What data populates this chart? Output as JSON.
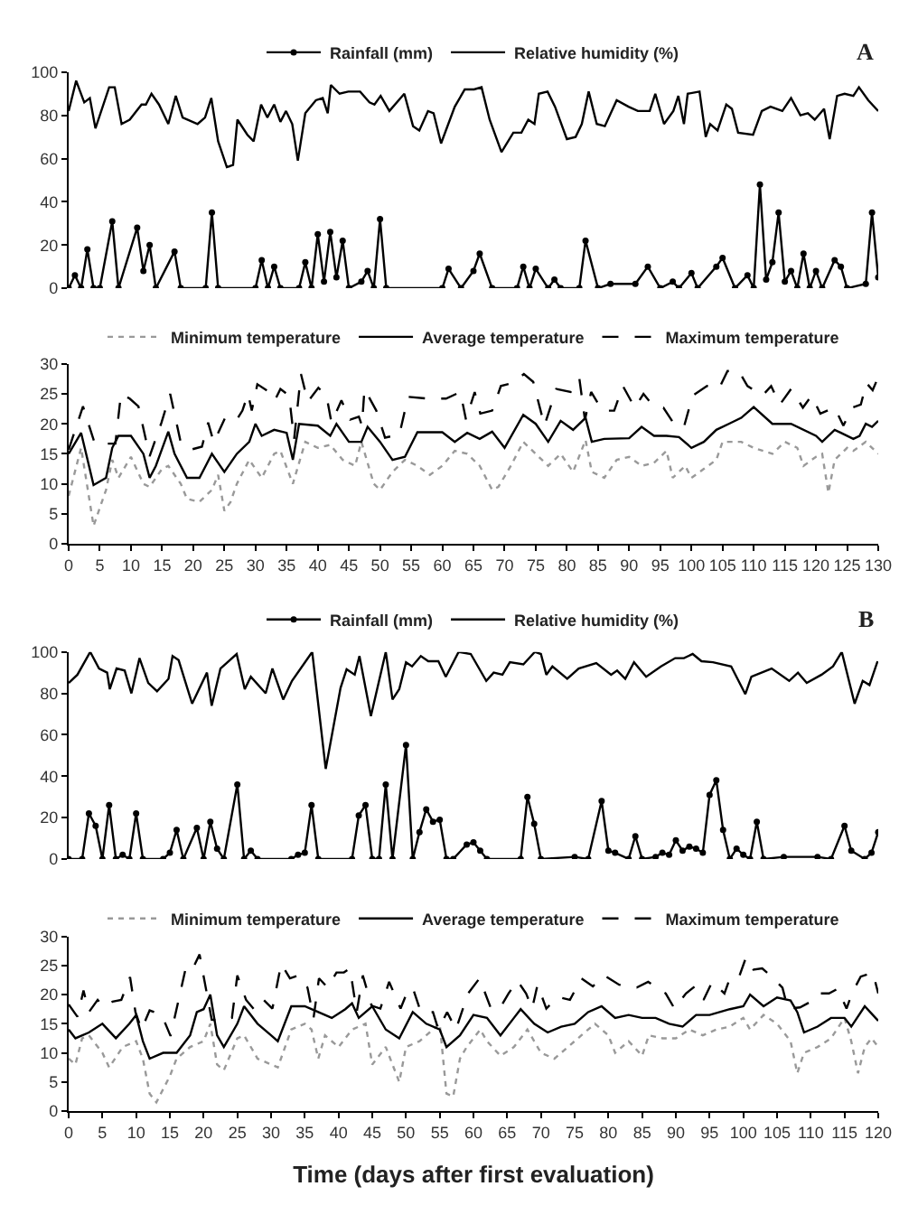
{
  "chart_data": [
    {
      "type": "line",
      "xlim": [
        0,
        130
      ],
      "ylim": [
        0,
        100
      ],
      "yticks": [
        0,
        20,
        40,
        60,
        80,
        100
      ],
      "tick_labels": "y",
      "legend": "top",
      "annotations": [
        "A"
      ],
      "series": [
        {
          "name": "Rainfall (mm)",
          "color": "#000000",
          "marker": "circle",
          "line_style": "solid",
          "x": [
            0,
            1,
            2,
            3,
            4,
            5,
            7,
            8,
            11,
            12,
            13,
            14,
            17,
            18,
            22,
            23,
            24,
            30,
            31,
            32,
            33,
            34,
            37,
            38,
            39,
            40,
            41,
            42,
            43,
            44,
            45,
            47,
            48,
            49,
            50,
            51,
            60,
            61,
            63,
            65,
            66,
            68,
            72,
            73,
            74,
            75,
            77,
            78,
            79,
            82,
            83,
            85,
            87,
            91,
            93,
            95,
            97,
            98,
            100,
            101,
            104,
            105,
            107,
            109,
            110,
            111,
            112,
            113,
            114,
            115,
            116,
            117,
            118,
            119,
            120,
            121,
            123,
            124,
            125,
            128,
            129,
            130
          ],
          "values": [
            0,
            6,
            0,
            18,
            0,
            0,
            31,
            0,
            28,
            8,
            20,
            0,
            17,
            0,
            0,
            35,
            0,
            0,
            13,
            0,
            10,
            0,
            0,
            12,
            0,
            25,
            3,
            26,
            5,
            22,
            0,
            3,
            8,
            0,
            32,
            0,
            0,
            9,
            0,
            8,
            16,
            0,
            0,
            10,
            0,
            9,
            0,
            4,
            0,
            0,
            22,
            0,
            2,
            2,
            10,
            0,
            3,
            0,
            7,
            0,
            10,
            14,
            0,
            6,
            0,
            48,
            4,
            12,
            35,
            3,
            8,
            0,
            16,
            0,
            8,
            0,
            13,
            10,
            0,
            2,
            35,
            5
          ]
        },
        {
          "name": "Relative humidity (%)",
          "color": "#000000",
          "marker": "none",
          "line_style": "solid",
          "x": [
            0,
            1.2,
            2.5,
            3.4,
            4.3,
            6.5,
            7.4,
            8.5,
            9.8,
            11.7,
            12.4,
            13.3,
            14.5,
            16,
            17.2,
            18.3,
            20.7,
            21.9,
            22.9,
            24,
            25.4,
            26.4,
            27.1,
            28.7,
            29.7,
            30.9,
            31.9,
            33,
            34,
            34.9,
            35.9,
            36.8,
            38,
            39.7,
            40.8,
            41.6,
            42.1,
            43.5,
            44.9,
            46.8,
            48.3,
            49.1,
            50.1,
            51.5,
            53.9,
            55.3,
            56.3,
            57.7,
            58.6,
            59.8,
            62,
            63.6,
            65.1,
            66.3,
            67.6,
            69.5,
            71.4,
            72.7,
            73.8,
            74.8,
            75.5,
            76.9,
            78.1,
            80,
            81.4,
            82.4,
            83.5,
            84.8,
            86.1,
            88,
            89.9,
            91.4,
            93.3,
            94.2,
            95.6,
            97.1,
            97.9,
            98.8,
            99.4,
            101.3,
            102.3,
            103,
            104.2,
            105.6,
            106.5,
            107.5,
            109.9,
            111.3,
            112.7,
            114.6,
            116,
            117.5,
            118.7,
            119.8,
            121.3,
            122.2,
            123.4,
            124.6,
            126,
            126.9,
            128.4,
            130
          ],
          "values": [
            82,
            96,
            86,
            88,
            74,
            93,
            93,
            76,
            78,
            85,
            85,
            90,
            85,
            76,
            89,
            79,
            76,
            79,
            88,
            68,
            56,
            57,
            78,
            71,
            68,
            85,
            79,
            85,
            77,
            82,
            76,
            59,
            81,
            87,
            88,
            81,
            94,
            90,
            91,
            91,
            86,
            85,
            89,
            82,
            90,
            75,
            73,
            82,
            81,
            67,
            84,
            92,
            92,
            93,
            78,
            63,
            72,
            72,
            78,
            76,
            90,
            91,
            84,
            69,
            70,
            76,
            91,
            76,
            75,
            87,
            84,
            82,
            82,
            90,
            76,
            82,
            89,
            76,
            90,
            91,
            70,
            76,
            73,
            85,
            83,
            72,
            71,
            82,
            84,
            82,
            88,
            80,
            81,
            78,
            83,
            69,
            89,
            90,
            89,
            93,
            87,
            82
          ]
        }
      ]
    },
    {
      "type": "line",
      "xlim": [
        0,
        130
      ],
      "xticks": [
        0,
        5,
        10,
        15,
        20,
        25,
        30,
        35,
        40,
        45,
        50,
        55,
        60,
        65,
        70,
        75,
        80,
        85,
        90,
        95,
        100,
        105,
        110,
        115,
        120,
        125,
        130
      ],
      "ylim": [
        0,
        30
      ],
      "yticks": [
        0,
        5,
        10,
        15,
        20,
        25,
        30
      ],
      "legend": "top",
      "series": [
        {
          "name": "Minimum temperature",
          "color": "#999999",
          "line_style": "dotted",
          "x": [
            0,
            2,
            4,
            6,
            7,
            8,
            10,
            12,
            13,
            15,
            16,
            18,
            19,
            21,
            23,
            24,
            25,
            26,
            27,
            29,
            31,
            33,
            34,
            36,
            38,
            40,
            42,
            44,
            46,
            47,
            49,
            50,
            52,
            54,
            56,
            58,
            60,
            62,
            64,
            66,
            68,
            69,
            71,
            73,
            75,
            77,
            79,
            81,
            83,
            84,
            86,
            88,
            90,
            92,
            94,
            96,
            97,
            99,
            100,
            102,
            104,
            105,
            108,
            110,
            113,
            115,
            117,
            118,
            120,
            121,
            122,
            123,
            125,
            126,
            128,
            130
          ],
          "values": [
            8,
            16,
            3,
            9,
            14,
            11,
            14.5,
            10,
            9.5,
            12.5,
            13,
            10,
            7.5,
            7,
            9,
            11.5,
            5.5,
            7,
            10,
            14,
            11,
            15,
            15.5,
            10,
            17,
            16,
            16.5,
            14,
            13,
            17,
            10,
            9,
            12,
            14,
            13,
            11.5,
            13,
            15.5,
            15,
            13,
            9,
            9.5,
            13,
            17,
            15,
            13,
            15,
            12,
            17.3,
            12,
            11,
            14,
            14.5,
            13,
            13.5,
            15.5,
            11,
            13,
            11,
            12.5,
            14,
            17,
            17,
            16,
            15,
            17,
            16,
            13,
            14.5,
            15,
            8.5,
            14,
            16,
            15.5,
            17,
            15
          ]
        },
        {
          "name": "Average temperature",
          "color": "#000000",
          "line_style": "solid",
          "x": [
            0,
            2,
            4,
            6,
            7,
            8,
            10,
            12,
            13,
            14,
            16,
            17,
            19,
            21,
            22,
            23,
            25,
            27,
            29,
            30,
            31,
            33,
            35,
            36,
            37,
            40,
            42,
            43,
            45,
            47,
            48,
            50,
            52,
            54,
            56,
            60,
            62,
            64,
            66,
            68,
            70,
            73,
            75,
            77,
            79,
            81,
            83,
            84,
            86,
            90,
            92,
            94,
            96,
            98,
            100,
            102,
            104,
            106,
            108,
            110,
            113,
            116,
            120,
            121,
            123,
            124,
            126,
            127,
            128,
            129,
            130
          ],
          "values": [
            15,
            18.5,
            9.8,
            11,
            16,
            18,
            18,
            15,
            11,
            13,
            18.7,
            15,
            11,
            11,
            13,
            15,
            12,
            15,
            17,
            20,
            18,
            19,
            18.5,
            14,
            20,
            19.7,
            18,
            20,
            17,
            17,
            19.5,
            17,
            14,
            14.5,
            18.6,
            18.6,
            17,
            18.5,
            17.5,
            18.7,
            16,
            21.5,
            20,
            17,
            20.5,
            19,
            21,
            17,
            17.5,
            17.6,
            19.5,
            18,
            18,
            17.8,
            16,
            17,
            19,
            20,
            21,
            22.8,
            20,
            20,
            18,
            17,
            19,
            18.5,
            17.5,
            18,
            20,
            19.5,
            20.5
          ]
        },
        {
          "name": "Maximum temperature",
          "color": "#000000",
          "line_style": "dashed",
          "x": [
            0,
            2.3,
            4.2,
            7.5,
            8.4,
            9.8,
            11.2,
            13,
            14.9,
            16.3,
            18,
            19.6,
            21.4,
            22.4,
            23.3,
            25.2,
            27,
            27.9,
            28.8,
            29.4,
            30.3,
            32.2,
            33.1,
            34,
            35.4,
            36.2,
            37.3,
            38.4,
            40.1,
            41.4,
            42.2,
            43.8,
            45.2,
            46.6,
            47.1,
            47.5,
            49.4,
            50.8,
            53.1,
            54.5,
            57.8,
            60.6,
            62.9,
            63.8,
            65.2,
            66.1,
            68,
            69.4,
            71.3,
            73.1,
            74.6,
            76.4,
            78.3,
            80.6,
            82,
            82.9,
            83.9,
            85.7,
            87.6,
            89,
            90.9,
            92.3,
            93.7,
            95.5,
            97.4,
            98.8,
            100.2,
            102.5,
            104.4,
            105.8,
            107.6,
            109,
            111.4,
            112.8,
            114.2,
            116,
            117.9,
            119.3,
            120.7,
            123,
            124.4,
            125.8,
            127.2,
            128.1,
            129.1,
            130
          ],
          "values": [
            15.7,
            22.9,
            16.7,
            16.7,
            25,
            24.2,
            22.9,
            14.6,
            20.2,
            25,
            16.9,
            15.7,
            16.2,
            20.2,
            16.9,
            21.2,
            20.7,
            22.2,
            25,
            22.2,
            26.6,
            25.3,
            23.9,
            25.8,
            24.7,
            17.4,
            28.3,
            23.7,
            26,
            24.7,
            20.2,
            23.9,
            20.7,
            21.2,
            19.7,
            25.8,
            22.2,
            17.7,
            18.2,
            24.5,
            24.2,
            24.2,
            25.3,
            20.7,
            25.3,
            21.7,
            22.2,
            26.3,
            26.8,
            28.3,
            27,
            19.7,
            25.8,
            25.3,
            27.6,
            20.7,
            25.3,
            22.2,
            22.2,
            26.3,
            22.7,
            25,
            23.2,
            22.7,
            19.7,
            19.5,
            24.7,
            26.3,
            25.8,
            28.8,
            28.8,
            26.3,
            24.7,
            26.3,
            23.2,
            25.8,
            22.7,
            24.7,
            21.7,
            22.7,
            19.7,
            22.7,
            23.2,
            26.8,
            25.6,
            27.8
          ]
        }
      ]
    },
    {
      "type": "line",
      "xlim": [
        0,
        120
      ],
      "ylim": [
        0,
        100
      ],
      "yticks": [
        0,
        20,
        40,
        60,
        80,
        100
      ],
      "tick_labels": "y",
      "legend": "top",
      "annotations": [
        "B"
      ],
      "series": [
        {
          "name": "Rainfall (mm)",
          "color": "#000000",
          "marker": "circle",
          "line_style": "solid",
          "x": [
            0,
            2,
            3,
            4,
            5,
            6,
            7,
            8,
            9,
            10,
            11,
            14,
            15,
            16,
            17,
            19,
            20,
            21,
            22,
            23,
            25,
            26,
            27,
            28,
            33,
            34,
            35,
            36,
            37,
            42,
            43,
            44,
            45,
            46,
            47,
            48,
            50,
            51,
            52,
            53,
            54,
            55,
            56,
            57,
            59,
            60,
            61,
            62,
            67,
            68,
            69,
            70,
            75,
            77,
            79,
            80,
            81,
            83,
            84,
            85,
            87,
            88,
            89,
            90,
            91,
            92,
            93,
            94,
            95,
            96,
            97,
            98,
            99,
            100,
            101,
            102,
            103,
            106,
            111,
            113,
            115,
            116,
            118,
            119,
            120
          ],
          "values": [
            0,
            0,
            22,
            16,
            0,
            26,
            0,
            2,
            0,
            22,
            0,
            0,
            3,
            14,
            0,
            15,
            0,
            18,
            5,
            0,
            36,
            0,
            4,
            0,
            0,
            2,
            3,
            26,
            0,
            0,
            21,
            26,
            0,
            0,
            36,
            0,
            55,
            0,
            13,
            24,
            18,
            19,
            0,
            0,
            7,
            8,
            4,
            0,
            0,
            30,
            17,
            0,
            1,
            0,
            28,
            4,
            3,
            0,
            11,
            0,
            1,
            3,
            2,
            9,
            4,
            6,
            5,
            3,
            31,
            38,
            14,
            0,
            5,
            2,
            0,
            18,
            0,
            1,
            1,
            0,
            16,
            4,
            0,
            3,
            13
          ]
        },
        {
          "name": "Relative humidity (%)",
          "color": "#000000",
          "marker": "none",
          "line_style": "solid",
          "x": [
            0,
            1.3,
            3.2,
            4.5,
            5.7,
            6.1,
            7.1,
            8.3,
            9.3,
            10.5,
            11.8,
            13.1,
            14.8,
            15.4,
            16.3,
            18.3,
            20.5,
            21.2,
            22.5,
            24.9,
            26.1,
            27,
            29.2,
            30.2,
            31.8,
            33.1,
            36.1,
            38.1,
            40.3,
            41.2,
            42.4,
            43.1,
            44.8,
            47,
            48,
            49,
            50,
            50.9,
            52.2,
            53.3,
            54.8,
            55.9,
            57.8,
            59.6,
            61.9,
            63,
            64.3,
            65.4,
            67.4,
            69.1,
            70,
            70.8,
            71.7,
            73.9,
            75.6,
            78.2,
            80.4,
            81.3,
            82.5,
            83.8,
            85.6,
            87.8,
            89.9,
            91.2,
            92.5,
            93.8,
            95.5,
            98.2,
            100.3,
            101.2,
            104.2,
            106.8,
            108.1,
            109.4,
            111.6,
            113.3,
            114.6,
            116.5,
            117.7,
            118.7,
            119.9
          ],
          "values": [
            85,
            89,
            100,
            92,
            90,
            82,
            92,
            91,
            80,
            97,
            85,
            81,
            87,
            98,
            96,
            75,
            90,
            74,
            92,
            99,
            82,
            88,
            80,
            92,
            77,
            86,
            100,
            43.5,
            82.6,
            91.6,
            89,
            98,
            69,
            100,
            77,
            82,
            95,
            93,
            98,
            95.5,
            95.5,
            88,
            100,
            99,
            86,
            90,
            89,
            95,
            94,
            100,
            99,
            89,
            93,
            87,
            92,
            94.6,
            89,
            91,
            87,
            95,
            88,
            93,
            97,
            97,
            99,
            95.5,
            95,
            93,
            79.6,
            88,
            92,
            86,
            90,
            85,
            89,
            93,
            100,
            75,
            86,
            84,
            95.5
          ]
        }
      ]
    },
    {
      "type": "line",
      "xlim": [
        0,
        120
      ],
      "xticks": [
        0,
        5,
        10,
        15,
        20,
        25,
        30,
        35,
        40,
        45,
        50,
        55,
        60,
        65,
        70,
        75,
        80,
        85,
        90,
        95,
        100,
        105,
        110,
        115,
        120
      ],
      "ylim": [
        0,
        30
      ],
      "yticks": [
        0,
        5,
        10,
        15,
        20,
        25,
        30
      ],
      "legend": "top",
      "xlabel": "Time (days after first evaluation)",
      "series": [
        {
          "name": "Minimum temperature",
          "color": "#999999",
          "line_style": "dotted",
          "x": [
            0,
            1,
            2,
            3,
            5,
            6,
            8,
            10,
            11,
            12,
            13,
            15,
            16,
            18,
            20,
            21,
            22,
            23,
            25,
            26,
            28,
            30,
            31,
            33,
            35,
            36,
            37,
            38,
            40,
            42,
            44,
            45,
            47,
            49,
            50,
            52,
            55,
            56,
            57,
            58,
            59,
            61,
            62,
            64,
            66,
            68,
            70,
            72,
            74,
            76,
            78,
            80,
            81,
            83,
            85,
            86,
            88,
            90,
            92,
            94,
            96,
            98,
            100,
            101,
            103,
            105,
            107,
            108,
            109,
            111,
            113,
            115,
            116,
            117,
            118,
            119,
            120
          ],
          "values": [
            9,
            8,
            12.5,
            13,
            10,
            7.5,
            11,
            12,
            9,
            3,
            1.5,
            6,
            9,
            11,
            12,
            15,
            8,
            7,
            12.5,
            13,
            9,
            8,
            7.5,
            14,
            15,
            14,
            9,
            13,
            11,
            14,
            15,
            8,
            11,
            5,
            11,
            12,
            15,
            3,
            2.5,
            9,
            11,
            14,
            12,
            9.5,
            11,
            14,
            10,
            9,
            11,
            13,
            15,
            13,
            10,
            12,
            9.5,
            13,
            12.5,
            12.5,
            14,
            13,
            14,
            14.5,
            16,
            14,
            16.5,
            15,
            12,
            6.5,
            10,
            11,
            12.5,
            16,
            12,
            6.5,
            11,
            12.5,
            11
          ]
        },
        {
          "name": "Average temperature",
          "color": "#000000",
          "line_style": "solid",
          "x": [
            0,
            1,
            3,
            5,
            7,
            9,
            10,
            11,
            12,
            14,
            16,
            18,
            19,
            20,
            21,
            22,
            23,
            25,
            26,
            28,
            30,
            31,
            33,
            35,
            37,
            39,
            41,
            42,
            43,
            45,
            47,
            49,
            51,
            53,
            55,
            56,
            58,
            60,
            62,
            64,
            66,
            67,
            69,
            71,
            73,
            75,
            77,
            79,
            81,
            83,
            85,
            87,
            89,
            91,
            93,
            95,
            98,
            100,
            101,
            103,
            105,
            107,
            108,
            109,
            111,
            113,
            115,
            116,
            118,
            120
          ],
          "values": [
            14,
            12.5,
            13.5,
            15,
            12.5,
            15,
            16.5,
            12,
            9,
            10,
            10,
            13,
            17,
            17.5,
            20,
            13,
            11,
            15,
            18,
            15,
            13,
            12,
            18,
            18,
            17,
            16,
            17.5,
            18.5,
            16,
            18,
            14,
            12.5,
            17,
            15,
            14,
            11,
            13,
            16.5,
            16,
            13,
            16,
            17.5,
            15,
            13.5,
            14.5,
            15,
            17,
            18,
            16,
            16.5,
            16,
            16,
            15,
            14.5,
            16.5,
            16.5,
            17.5,
            18,
            20,
            18,
            19.5,
            19,
            17,
            13.5,
            14.5,
            16,
            16,
            14.5,
            18,
            15.5
          ]
        },
        {
          "name": "Maximum temperature",
          "color": "#000000",
          "line_style": "dashed",
          "x": [
            0,
            1.3,
            2.2,
            3,
            4.3,
            5.2,
            6.5,
            7.8,
            9.1,
            9.9,
            10.8,
            12,
            13.8,
            15.1,
            17.3,
            18.1,
            19.4,
            21.2,
            22.9,
            24.2,
            25,
            26.3,
            27.6,
            28.9,
            30.2,
            31.5,
            32.8,
            34.1,
            35.4,
            36.3,
            37.1,
            38.4,
            39.7,
            40.8,
            41.7,
            42.7,
            43.6,
            44.9,
            46.2,
            47.5,
            49.2,
            50.1,
            51,
            52.2,
            54,
            54.8,
            56.1,
            57.4,
            59.2,
            60.9,
            62.6,
            63.9,
            65.2,
            66.5,
            67.8,
            68.7,
            69.5,
            70.8,
            72.5,
            74.3,
            76,
            77.7,
            79.4,
            81.6,
            84.2,
            85.9,
            88.5,
            89.8,
            91.5,
            92.8,
            94.1,
            95.4,
            97.2,
            98,
            99.3,
            100.4,
            101.5,
            102.8,
            104,
            105.8,
            106.6,
            108.4,
            109.7,
            111,
            112.7,
            114,
            115.3,
            116.1,
            117.4,
            119.2,
            120
          ],
          "values": [
            18.3,
            16.2,
            20.7,
            17,
            19.1,
            17.9,
            18.8,
            19.1,
            23,
            17,
            14,
            17.3,
            16.5,
            12.9,
            24.3,
            23.8,
            26.9,
            15.7,
            15.5,
            16,
            23.3,
            19.1,
            17.3,
            19.1,
            17.6,
            25.3,
            22.8,
            23.3,
            21.2,
            16,
            22.8,
            21.2,
            23.8,
            23.8,
            24.5,
            17,
            23.3,
            18.1,
            17.6,
            22.2,
            17.6,
            20.2,
            21.2,
            17,
            17,
            14,
            17,
            14,
            20.2,
            22.8,
            17.6,
            17.6,
            20.2,
            22.4,
            20.2,
            17.6,
            21.7,
            17.6,
            19.6,
            19.1,
            22.8,
            21.4,
            23.3,
            21.7,
            21.2,
            22.2,
            20.2,
            17.6,
            20.2,
            21.4,
            19.1,
            22.2,
            20.2,
            22.8,
            22.8,
            26.4,
            24.3,
            24.5,
            23.3,
            21.2,
            17.6,
            17.8,
            18.6,
            20.2,
            20.2,
            21,
            17.6,
            20.2,
            23.1,
            23.8,
            20.2
          ]
        }
      ]
    }
  ]
}
